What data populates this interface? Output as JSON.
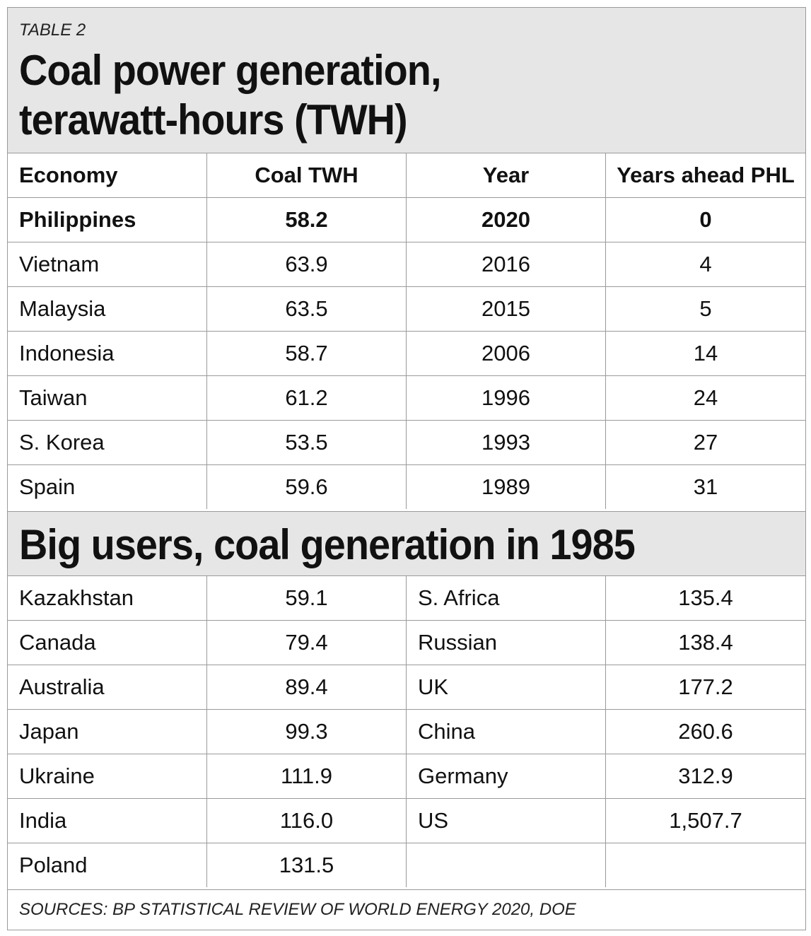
{
  "header": {
    "label": "TABLE 2",
    "title_line1": "Coal power generation,",
    "title_line2": "terawatt-hours (TWH)"
  },
  "table1": {
    "columns": [
      "Economy",
      "Coal TWH",
      "Year",
      "Years ahead PHL"
    ],
    "rows": [
      [
        "Philippines",
        "58.2",
        "2020",
        "0"
      ],
      [
        "Vietnam",
        "63.9",
        "2016",
        "4"
      ],
      [
        "Malaysia",
        "63.5",
        "2015",
        "5"
      ],
      [
        "Indonesia",
        "58.7",
        "2006",
        "14"
      ],
      [
        "Taiwan",
        "61.2",
        "1996",
        "24"
      ],
      [
        "S. Korea",
        "53.5",
        "1993",
        "27"
      ],
      [
        "Spain",
        "59.6",
        "1989",
        "31"
      ]
    ]
  },
  "section2": {
    "title": "Big users, coal generation in 1985"
  },
  "table2": {
    "rows": [
      [
        "Kazakhstan",
        "59.1",
        "S. Africa",
        "135.4"
      ],
      [
        "Canada",
        "79.4",
        "Russian",
        "138.4"
      ],
      [
        "Australia",
        "89.4",
        "UK",
        "177.2"
      ],
      [
        "Japan",
        "99.3",
        "China",
        "260.6"
      ],
      [
        "Ukraine",
        "111.9",
        "Germany",
        "312.9"
      ],
      [
        "India",
        "116.0",
        "US",
        "1,507.7"
      ],
      [
        "Poland",
        "131.5",
        "",
        ""
      ]
    ]
  },
  "footer": {
    "source": "SOURCES: BP STATISTICAL REVIEW OF WORLD ENERGY 2020, DOE"
  }
}
